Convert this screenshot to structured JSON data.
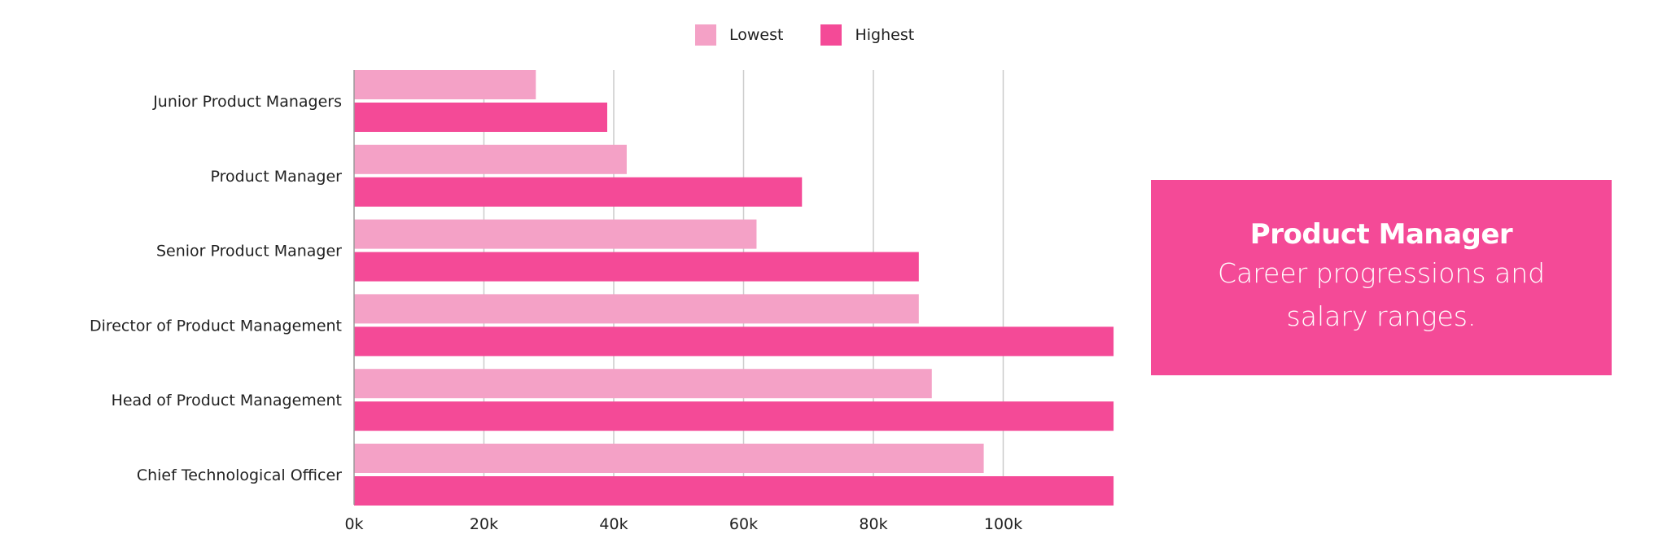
{
  "legend": {
    "lowest_label": "Lowest",
    "highest_label": "Highest"
  },
  "callout": {
    "title": "Product Manager",
    "text": "Career progressions and salary ranges."
  },
  "colors": {
    "lowest": "#f4a1c6",
    "highest": "#f44a97",
    "callout_bg": "#f44a97",
    "grid": "#cccccc",
    "axis": "#999999"
  },
  "chart_data": {
    "type": "bar",
    "orientation": "horizontal",
    "categories": [
      "Junior Product Managers",
      "Product Manager",
      "Senior Product Manager",
      "Director of Product Management",
      "Head of Product Management",
      "Chief Technological Officer"
    ],
    "series": [
      {
        "name": "Lowest",
        "values": [
          28000,
          42000,
          62000,
          87000,
          89000,
          97000
        ]
      },
      {
        "name": "Highest",
        "values": [
          39000,
          69000,
          87000,
          117000,
          117000,
          117000
        ]
      }
    ],
    "xticks": [
      "0k",
      "20k",
      "40k",
      "60k",
      "80k",
      "100k"
    ],
    "xtick_values": [
      0,
      20000,
      40000,
      60000,
      80000,
      100000
    ],
    "xlim": [
      0,
      117000
    ],
    "grid": true,
    "legend_position": "top-center"
  }
}
